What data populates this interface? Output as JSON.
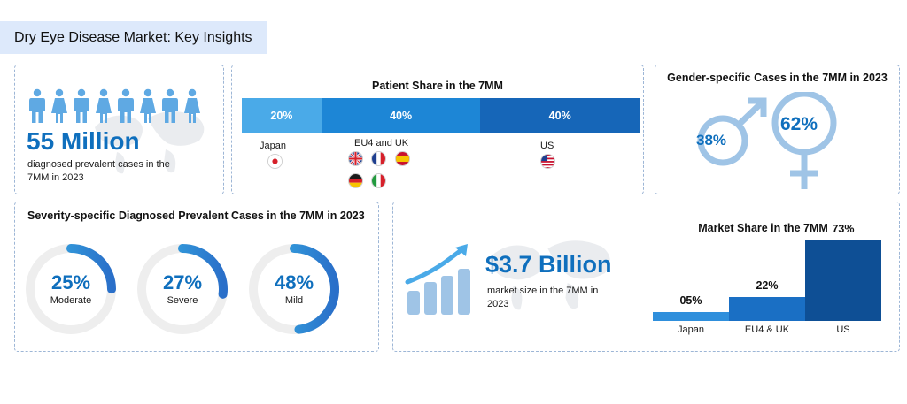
{
  "header": {
    "title": "Dry Eye Disease Market: Key Insights"
  },
  "prevalence": {
    "value": "55 Million",
    "description_line1": "diagnosed prevalent cases in the",
    "description_line2": "7MM in 2023"
  },
  "patient_share": {
    "title": "Patient Share in the 7MM",
    "segments": [
      {
        "label": "20%",
        "value": 20,
        "color": "#4aaae8"
      },
      {
        "label": "40%",
        "value": 40,
        "color": "#1d86d6"
      },
      {
        "label": "40%",
        "value": 40,
        "color": "#1666b8"
      }
    ],
    "regions": [
      "Japan",
      "EU4 and UK",
      "US"
    ]
  },
  "gender": {
    "title": "Gender-specific Cases in the 7MM in 2023",
    "male_pct": "38%",
    "female_pct": "62%"
  },
  "severity": {
    "title": "Severity-specific Diagnosed Prevalent Cases in the 7MM in 2023",
    "items": [
      {
        "pct": "25%",
        "value": 25,
        "label": "Moderate"
      },
      {
        "pct": "27%",
        "value": 27,
        "label": "Severe"
      },
      {
        "pct": "48%",
        "value": 48,
        "label": "Mild"
      }
    ]
  },
  "market": {
    "value": "$3.7 Billion",
    "description_line1": "market size in the 7MM in",
    "description_line2": "2023"
  },
  "chart_data": {
    "type": "bar",
    "title": "Market Share in the 7MM",
    "categories": [
      "Japan",
      "EU4 & UK",
      "US"
    ],
    "values": [
      5,
      22,
      73
    ],
    "value_labels": [
      "05%",
      "22%",
      "73%"
    ],
    "colors": [
      "#2f8fdc",
      "#1a6fc4",
      "#0e4f95"
    ],
    "ylim": [
      0,
      73
    ],
    "grid": false
  }
}
